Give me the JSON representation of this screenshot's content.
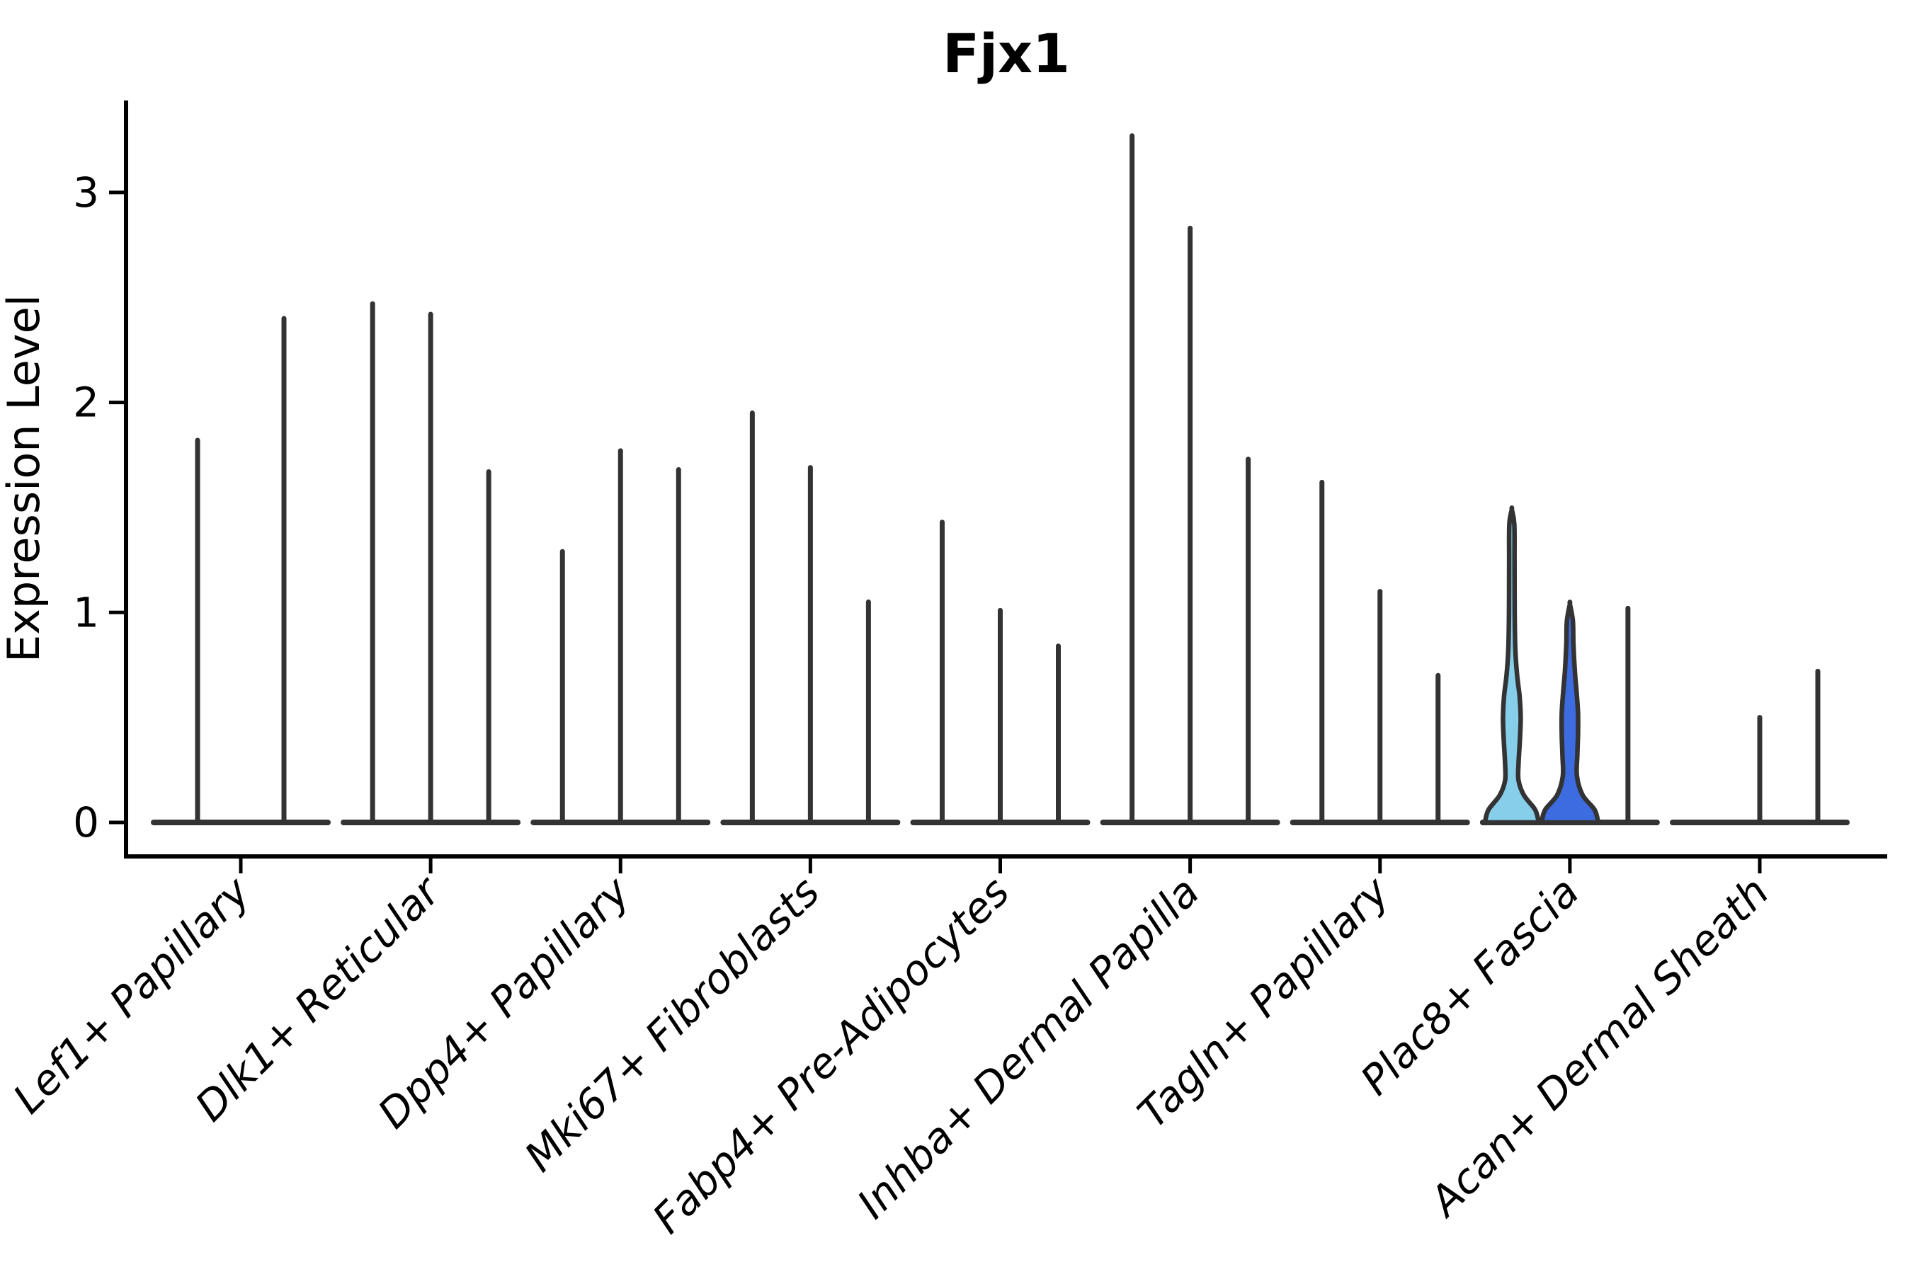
{
  "title": "Fjx1",
  "y_axis": {
    "label": "Expression Level",
    "ticks": [
      "0",
      "1",
      "2",
      "3"
    ]
  },
  "colors": {
    "axis": "#000000",
    "violin_line": "#333333",
    "highlight_light_blue": "#87CEEB",
    "highlight_royal_blue": "#3D6BE0",
    "background": "#ffffff"
  },
  "chart_data": {
    "type": "violin",
    "title": "Fjx1",
    "xlabel": "",
    "ylabel": "Expression Level",
    "ylim": [
      -0.16,
      3.44
    ],
    "yticks": [
      0,
      1,
      2,
      3
    ],
    "grid": false,
    "legend_position": "none",
    "x_tick_rotation": 45,
    "categories": [
      "Lef1+ Papillary",
      "Dlk1+ Reticular",
      "Dpp4+ Papillary",
      "Mki67+ Fibroblasts",
      "Fabp4+ Pre-Adipocytes",
      "Inhba+ Dermal Papilla",
      "Tagln+ Papillary",
      "Plac8+ Fascia",
      "Acan+ Dermal Sheath"
    ],
    "groups": [
      {
        "category": "Lef1+ Papillary",
        "violins": [
          {
            "max": 1.82
          },
          {
            "max": 2.4
          }
        ]
      },
      {
        "category": "Dlk1+ Reticular",
        "violins": [
          {
            "max": 2.47
          },
          {
            "max": 2.42
          },
          {
            "max": 1.67
          }
        ]
      },
      {
        "category": "Dpp4+ Papillary",
        "violins": [
          {
            "max": 1.29
          },
          {
            "max": 1.77
          },
          {
            "max": 1.68
          }
        ]
      },
      {
        "category": "Mki67+ Fibroblasts",
        "violins": [
          {
            "max": 1.95
          },
          {
            "max": 1.69
          },
          {
            "max": 1.05
          }
        ]
      },
      {
        "category": "Fabp4+ Pre-Adipocytes",
        "violins": [
          {
            "max": 1.43
          },
          {
            "max": 1.01
          },
          {
            "max": 0.84
          }
        ]
      },
      {
        "category": "Inhba+ Dermal Papilla",
        "violins": [
          {
            "max": 3.27
          },
          {
            "max": 2.83
          },
          {
            "max": 1.73
          }
        ]
      },
      {
        "category": "Tagln+ Papillary",
        "violins": [
          {
            "max": 1.62
          },
          {
            "max": 1.1
          },
          {
            "max": 0.7
          }
        ]
      },
      {
        "category": "Plac8+ Fascia",
        "violins": [
          {
            "max": 1.49,
            "fill": "#87CEEB",
            "profile": [
              [
                0,
                38
              ],
              [
                0.06,
                33
              ],
              [
                0.13,
                17
              ],
              [
                0.2,
                9.5
              ],
              [
                0.28,
                9.5
              ],
              [
                0.4,
                11.5
              ],
              [
                0.5,
                12.5
              ],
              [
                0.6,
                11
              ],
              [
                0.7,
                7.5
              ],
              [
                0.82,
                5
              ],
              [
                1.0,
                4
              ],
              [
                1.25,
                3.8
              ],
              [
                1.42,
                3.5
              ],
              [
                1.49,
                0
              ]
            ]
          },
          {
            "max": 1.04,
            "fill": "#3D6BE0",
            "profile": [
              [
                0,
                40
              ],
              [
                0.06,
                35
              ],
              [
                0.13,
                18
              ],
              [
                0.22,
                10
              ],
              [
                0.32,
                10.5
              ],
              [
                0.42,
                11.5
              ],
              [
                0.52,
                11.5
              ],
              [
                0.62,
                9.5
              ],
              [
                0.72,
                7
              ],
              [
                0.85,
                5
              ],
              [
                0.96,
                4.2
              ],
              [
                1.04,
                0
              ]
            ]
          },
          {
            "max": 1.02
          }
        ]
      },
      {
        "category": "Acan+ Dermal Sheath",
        "violins": [
          {
            "max": 0,
            "flat": true
          },
          {
            "max": 0.5
          },
          {
            "max": 0.72
          }
        ]
      }
    ]
  }
}
